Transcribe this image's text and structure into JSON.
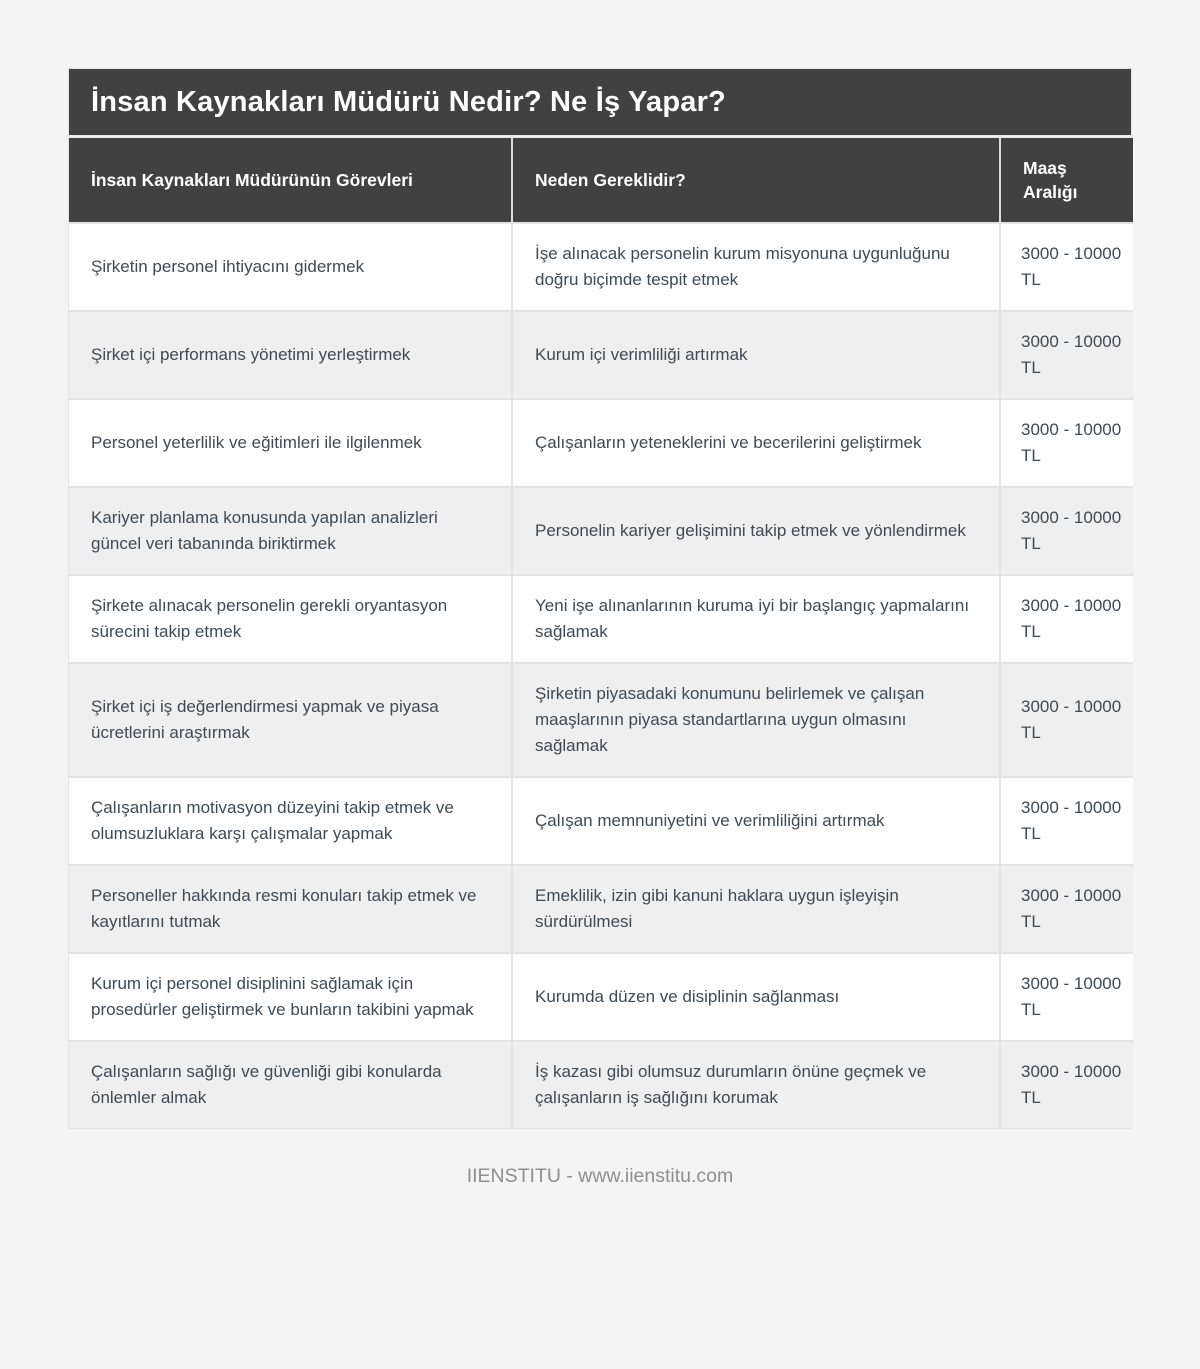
{
  "colors": {
    "page_bg": "#f4f4f4",
    "band_dark": "#414141",
    "row_bg": "#ffffff",
    "row_alt_bg": "#efefef",
    "border": "#e4e4e4",
    "header_text": "#ffffff",
    "body_text": "#3f4a54",
    "footer_text": "#8f8f8f"
  },
  "header": {
    "title": "İnsan Kaynakları Müdürü Nedir? Ne İş Yapar?"
  },
  "table": {
    "columns": [
      {
        "label": "İnsan Kaynakları Müdürünün Görevleri"
      },
      {
        "label": "Neden Gereklidir?"
      },
      {
        "label": "Maaş Aralığı"
      }
    ],
    "rows": [
      {
        "gorev": "Şirketin personel ihtiyacını gidermek",
        "neden": "İşe alınacak personelin kurum misyonuna uygunluğunu doğru biçimde tespit etmek",
        "maas": "3000 - 10000 TL"
      },
      {
        "gorev": "Şirket içi performans yönetimi yerleştirmek",
        "neden": "Kurum içi verimliliği artırmak",
        "maas": "3000 - 10000 TL"
      },
      {
        "gorev": "Personel yeterlilik ve eğitimleri ile ilgilenmek",
        "neden": "Çalışanların yeteneklerini ve becerilerini geliştirmek",
        "maas": "3000 - 10000 TL"
      },
      {
        "gorev": "Kariyer planlama konusunda yapılan analizleri güncel veri tabanında biriktirmek",
        "neden": "Personelin kariyer gelişimini takip etmek ve yönlendirmek",
        "maas": "3000 - 10000 TL"
      },
      {
        "gorev": "Şirkete alınacak personelin gerekli oryantasyon sürecini takip etmek",
        "neden": "Yeni işe alınanlarının kuruma iyi bir başlangıç yapmalarını sağlamak",
        "maas": "3000 - 10000 TL"
      },
      {
        "gorev": "Şirket içi iş değerlendirmesi yapmak ve piyasa ücretlerini araştırmak",
        "neden": "Şirketin piyasadaki konumunu belirlemek ve çalışan maaşlarının piyasa standartlarına uygun olmasını sağlamak",
        "maas": "3000 - 10000 TL"
      },
      {
        "gorev": "Çalışanların motivasyon düzeyini takip etmek ve olumsuzluklara karşı çalışmalar yapmak",
        "neden": "Çalışan memnuniyetini ve verimliliğini artırmak",
        "maas": "3000 - 10000 TL"
      },
      {
        "gorev": "Personeller hakkında resmi konuları takip etmek ve kayıtlarını tutmak",
        "neden": "Emeklilik, izin gibi kanuni haklara uygun işleyişin sürdürülmesi",
        "maas": "3000 - 10000 TL"
      },
      {
        "gorev": "Kurum içi personel disiplinini sağlamak için prosedürler geliştirmek ve bunların takibini yapmak",
        "neden": "Kurumda düzen ve disiplinin sağlanması",
        "maas": "3000 - 10000 TL"
      },
      {
        "gorev": "Çalışanların sağlığı ve güvenliği gibi konularda önlemler almak",
        "neden": "İş kazası gibi olumsuz durumların önüne geçmek ve çalışanların iş sağlığını korumak",
        "maas": "3000 - 10000 TL"
      }
    ]
  },
  "footer": {
    "text": "IIENSTITU - www.iienstitu.com"
  }
}
